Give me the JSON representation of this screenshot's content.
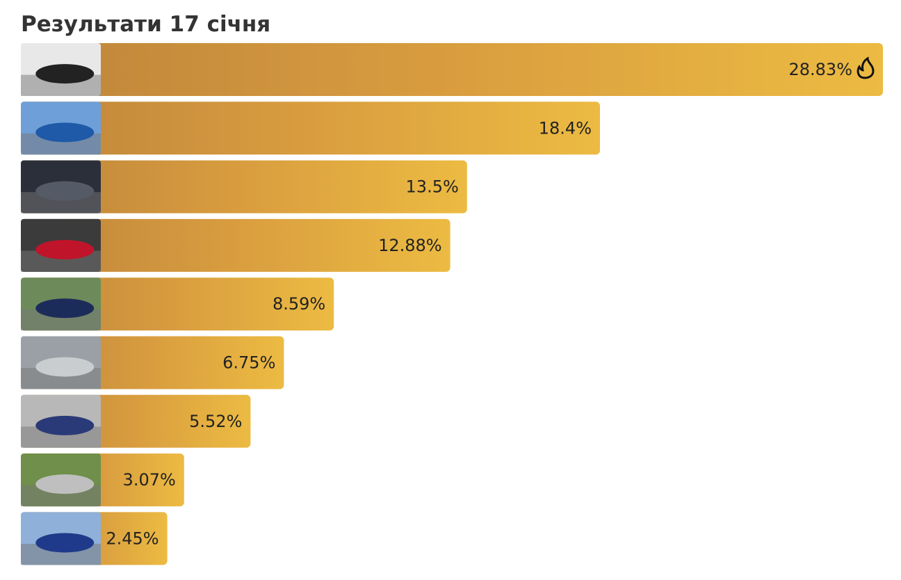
{
  "chart_data": {
    "type": "bar",
    "title": "Результати 17 січня",
    "values": [
      28.83,
      18.4,
      13.5,
      12.88,
      8.59,
      6.75,
      5.52,
      3.07,
      2.45
    ],
    "value_labels": [
      "28.83%",
      "18.4%",
      "13.5%",
      "12.88%",
      "8.59%",
      "6.75%",
      "5.52%",
      "3.07%",
      "2.45%"
    ],
    "color": "#ecbb42"
  }
}
